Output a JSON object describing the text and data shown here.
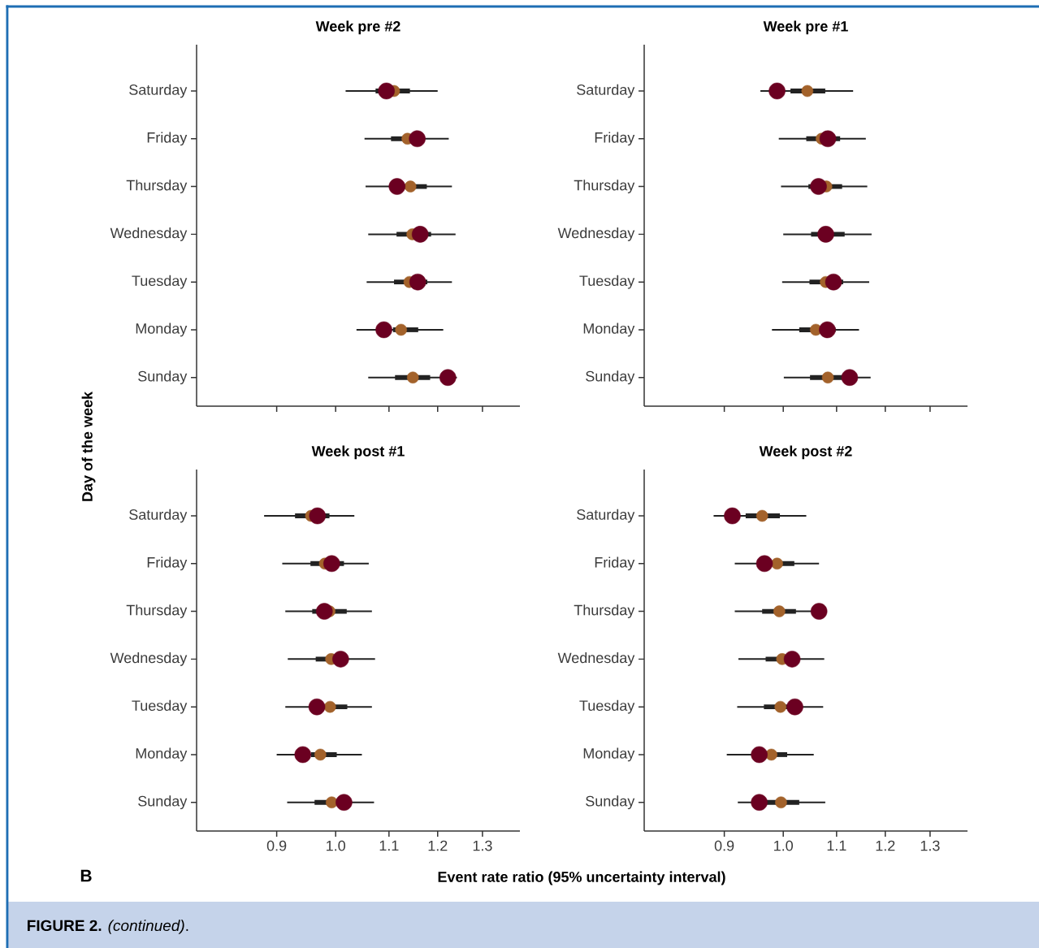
{
  "chart_data": [
    {
      "type": "box",
      "title": "Week pre #2",
      "ylabel": "Day of the week",
      "orientation": "horizontal",
      "log": "x",
      "marker": "circle",
      "tick_labels": "y",
      "categories": [
        "Saturday",
        "Friday",
        "Thursday",
        "Wednesday",
        "Tuesday",
        "Monday",
        "Sunday"
      ],
      "xlim": [
        0.78,
        1.39
      ],
      "xticks": [
        0.9,
        1,
        1.1,
        1.2,
        1.3
      ],
      "series": [
        {
          "type": "box",
          "color": "#222222",
          "boxes": [
            {
              "low": 1.018,
              "q1": 1.074,
              "median": 1.11,
              "q3": 1.142,
              "high": 1.2
            },
            {
              "low": 1.053,
              "q1": 1.104,
              "median": 1.137,
              "q3": 1.144,
              "high": 1.224
            },
            {
              "low": 1.055,
              "q1": 1.103,
              "median": 1.143,
              "q3": 1.177,
              "high": 1.231
            },
            {
              "low": 1.06,
              "q1": 1.115,
              "median": 1.147,
              "q3": 1.186,
              "high": 1.239
            },
            {
              "low": 1.057,
              "q1": 1.11,
              "median": 1.141,
              "q3": 1.178,
              "high": 1.231
            },
            {
              "low": 1.038,
              "q1": 1.108,
              "median": 1.124,
              "q3": 1.159,
              "high": 1.212
            },
            {
              "low": 1.06,
              "q1": 1.112,
              "median": 1.148,
              "q3": 1.184,
              "high": 1.242
            }
          ]
        },
        {
          "type": "scatter",
          "color": "#6b0021",
          "values": [
            1.095,
            1.157,
            1.116,
            1.163,
            1.158,
            1.09,
            1.222
          ]
        }
      ]
    },
    {
      "type": "box",
      "title": "Week pre #1",
      "orientation": "horizontal",
      "log": "x",
      "marker": "circle",
      "tick_labels": "y",
      "categories": [
        "Saturday",
        "Friday",
        "Thursday",
        "Wednesday",
        "Tuesday",
        "Monday",
        "Sunday"
      ],
      "xlim": [
        0.78,
        1.39
      ],
      "xticks": [
        0.9,
        1,
        1.1,
        1.2,
        1.3
      ],
      "series": [
        {
          "type": "box",
          "color": "#222222",
          "boxes": [
            {
              "low": 0.96,
              "q1": 1.013,
              "median": 1.044,
              "q3": 1.078,
              "high": 1.133
            },
            {
              "low": 0.992,
              "q1": 1.042,
              "median": 1.071,
              "q3": 1.107,
              "high": 1.159
            },
            {
              "low": 0.996,
              "q1": 1.046,
              "median": 1.08,
              "q3": 1.111,
              "high": 1.162
            },
            {
              "low": 1.0,
              "q1": 1.051,
              "median": 1.077,
              "q3": 1.116,
              "high": 1.171
            },
            {
              "low": 0.998,
              "q1": 1.048,
              "median": 1.079,
              "q3": 1.113,
              "high": 1.166
            },
            {
              "low": 0.98,
              "q1": 1.029,
              "median": 1.06,
              "q3": 1.098,
              "high": 1.145
            },
            {
              "low": 1.001,
              "q1": 1.049,
              "median": 1.083,
              "q3": 1.12,
              "high": 1.169
            }
          ]
        },
        {
          "type": "scatter",
          "color": "#6b0021",
          "values": [
            0.989,
            1.083,
            1.065,
            1.079,
            1.094,
            1.082,
            1.126
          ]
        }
      ]
    },
    {
      "type": "box",
      "title": "Week post #1",
      "xlabel": "Event rate ratio (95% uncertainty interval)",
      "orientation": "horizontal",
      "log": "x",
      "marker": "circle",
      "annotations": [
        "B",
        "**FIGURE 2.** *(continued)*."
      ],
      "categories": [
        "Saturday",
        "Friday",
        "Thursday",
        "Wednesday",
        "Tuesday",
        "Monday",
        "Sunday"
      ],
      "xlim": [
        0.78,
        1.39
      ],
      "xticks": [
        0.9,
        {
          "value": 1.0,
          "label": "1.0"
        },
        1.1,
        1.2,
        1.3
      ],
      "series": [
        {
          "type": "box",
          "color": "#222222",
          "boxes": [
            {
              "low": 0.88,
              "q1": 0.93,
              "median": 0.957,
              "q3": 0.989,
              "high": 1.034
            },
            {
              "low": 0.909,
              "q1": 0.956,
              "median": 0.981,
              "q3": 1.015,
              "high": 1.061
            },
            {
              "low": 0.914,
              "q1": 0.959,
              "median": 0.989,
              "q3": 1.02,
              "high": 1.067
            },
            {
              "low": 0.918,
              "q1": 0.965,
              "median": 0.992,
              "q3": 1.004,
              "high": 1.073
            },
            {
              "low": 0.914,
              "q1": 0.966,
              "median": 0.99,
              "q3": 1.021,
              "high": 1.067
            },
            {
              "low": 0.9,
              "q1": 0.957,
              "median": 0.973,
              "q3": 1.002,
              "high": 1.048
            },
            {
              "low": 0.917,
              "q1": 0.963,
              "median": 0.993,
              "q3": 1.018,
              "high": 1.071
            }
          ]
        },
        {
          "type": "scatter",
          "color": "#6b0021",
          "values": [
            0.968,
            0.993,
            0.98,
            1.009,
            0.967,
            0.943,
            1.015
          ]
        }
      ]
    },
    {
      "type": "box",
      "title": "Week post #2",
      "orientation": "horizontal",
      "log": "x",
      "marker": "circle",
      "categories": [
        "Saturday",
        "Friday",
        "Thursday",
        "Wednesday",
        "Tuesday",
        "Monday",
        "Sunday"
      ],
      "xlim": [
        0.78,
        1.39
      ],
      "xticks": [
        0.9,
        {
          "value": 1.0,
          "label": "1.0"
        },
        1.1,
        1.2,
        1.3
      ],
      "series": [
        {
          "type": "box",
          "color": "#222222",
          "boxes": [
            {
              "low": 0.883,
              "q1": 0.935,
              "median": 0.963,
              "q3": 0.994,
              "high": 1.042
            },
            {
              "low": 0.917,
              "q1": 0.964,
              "median": 0.989,
              "q3": 1.02,
              "high": 1.066
            },
            {
              "low": 0.917,
              "q1": 0.963,
              "median": 0.993,
              "q3": 1.023,
              "high": 1.066
            },
            {
              "low": 0.923,
              "q1": 0.969,
              "median": 0.998,
              "q3": 1.017,
              "high": 1.076
            },
            {
              "low": 0.921,
              "q1": 0.966,
              "median": 0.995,
              "q3": 1.017,
              "high": 1.074
            },
            {
              "low": 0.904,
              "q1": 0.974,
              "median": 0.979,
              "q3": 1.007,
              "high": 1.056
            },
            {
              "low": 0.922,
              "q1": 0.969,
              "median": 0.996,
              "q3": 1.029,
              "high": 1.078
            }
          ]
        },
        {
          "type": "scatter",
          "color": "#6b0021",
          "values": [
            0.913,
            0.967,
            1.066,
            1.016,
            1.021,
            0.958,
            0.958
          ]
        }
      ]
    }
  ]
}
